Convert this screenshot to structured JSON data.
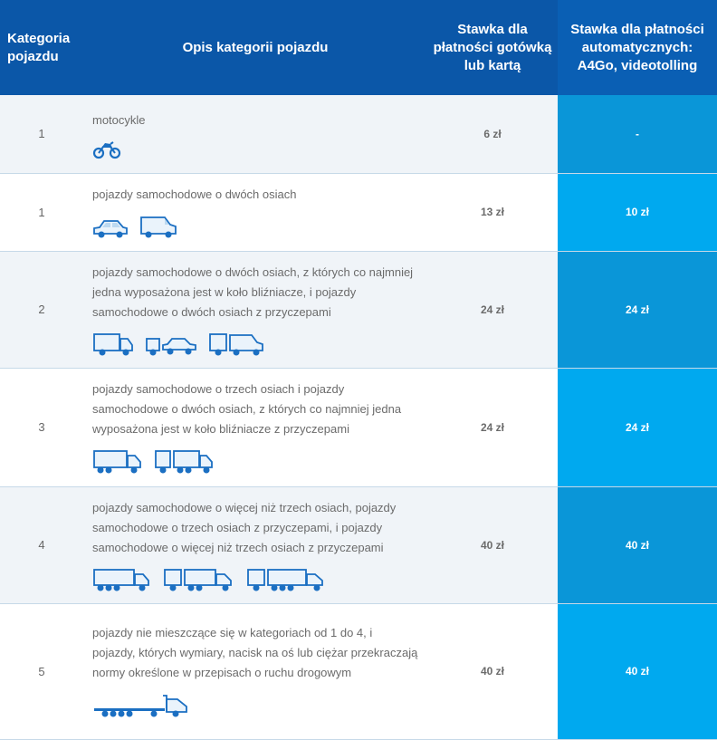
{
  "header": {
    "category": "Kategoria pojazdu",
    "description": "Opis kategorii pojazdu",
    "cash_rate": "Stawka dla płatności gotówką lub kartą",
    "auto_rate": "Stawka dla płatności automatycznych: A4Go, videotolling"
  },
  "rows": [
    {
      "category": "1",
      "description": "motocykle",
      "cash": "6 zł",
      "auto": "-",
      "icons": [
        "motorcycle-icon"
      ]
    },
    {
      "category": "1",
      "description": "pojazdy samochodowe o dwóch osiach",
      "cash": "13 zł",
      "auto": "10 zł",
      "icons": [
        "car-icon",
        "van-icon"
      ]
    },
    {
      "category": "2",
      "description": "pojazdy samochodowe o dwóch osiach, z których co najmniej jedna wyposażona jest w koło bliźniacze, i pojazdy samochodowe o dwóch osiach z przyczepami",
      "cash": "24 zł",
      "auto": "24 zł",
      "icons": [
        "truck-2axle-icon",
        "car-with-trailer-icon",
        "van-with-trailer-icon"
      ]
    },
    {
      "category": "3",
      "description": "pojazdy samochodowe o trzech osiach i pojazdy samochodowe o dwóch osiach, z których co najmniej jedna wyposażona jest w koło bliźniacze z przyczepami",
      "cash": "24 zł",
      "auto": "24 zł",
      "icons": [
        "truck-3axle-icon",
        "truck-with-trailer-icon"
      ]
    },
    {
      "category": "4",
      "description": "pojazdy samochodowe o więcej niż trzech osiach, pojazdy samochodowe o trzech osiach z przyczepami, i pojazdy samochodowe o więcej niż trzech osiach z przyczepami",
      "cash": "40 zł",
      "auto": "40 zł",
      "icons": [
        "truck-4axle-icon",
        "truck-3axle-trailer-icon",
        "truck-4axle-trailer-icon"
      ]
    },
    {
      "category": "5",
      "description": "pojazdy nie mieszczące się w kategoriach od 1 do 4, i pojazdy, których wymiary, nacisk na oś lub ciężar przekraczają normy określone w przepisach o ruchu drogowym",
      "cash": "40 zł",
      "auto": "40 zł",
      "icons": [
        "flatbed-truck-icon"
      ]
    }
  ],
  "colors": {
    "header_bg": "#0b57a8",
    "auto_col_odd": "#0a96d8",
    "auto_col_even": "#00a9ef",
    "icon_blue": "#1b6fc2"
  }
}
